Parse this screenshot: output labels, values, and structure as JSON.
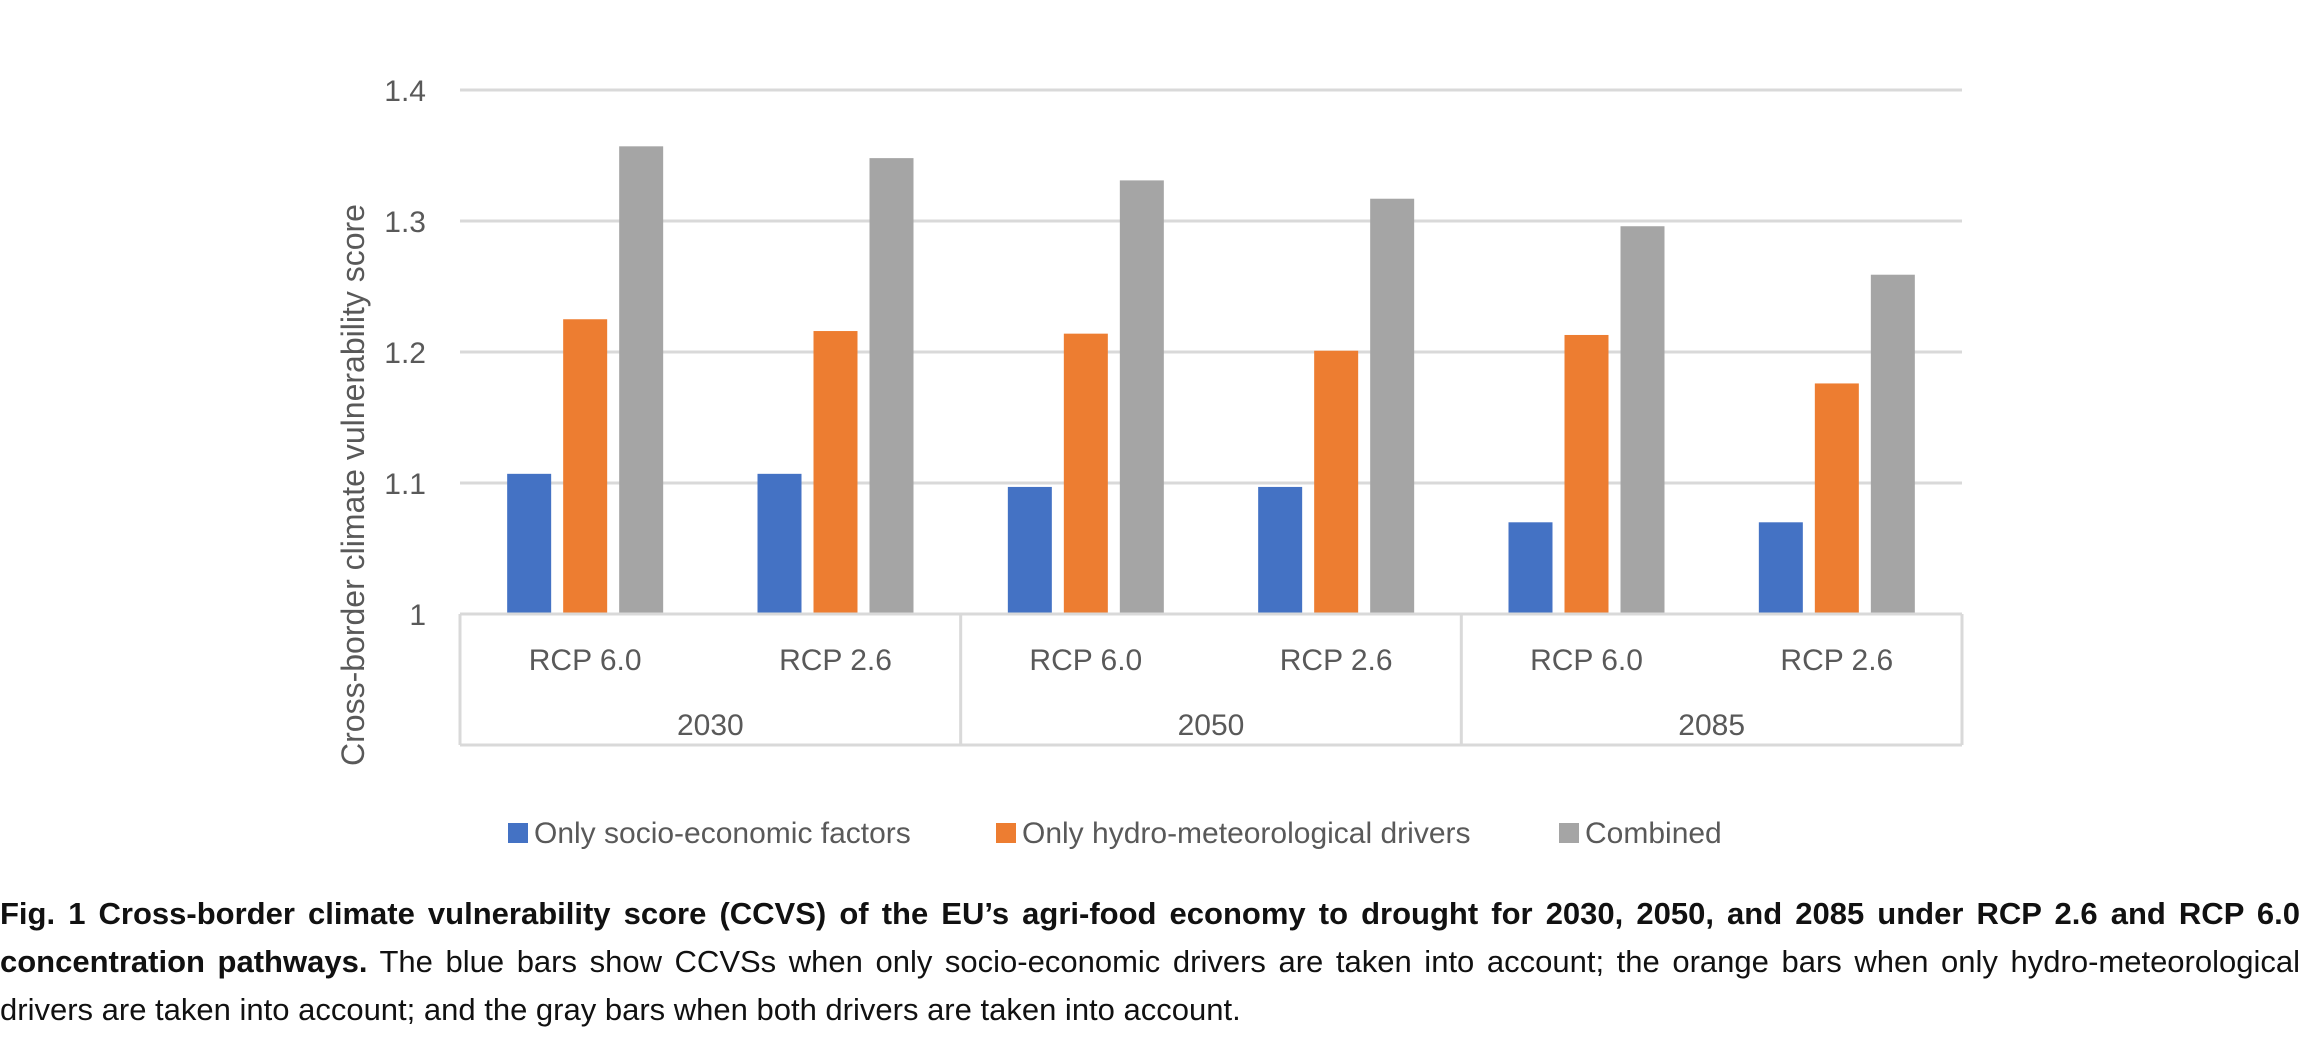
{
  "chart_data": {
    "type": "bar",
    "ylabel": "Cross-border climate vulnerability score",
    "xlabel": "",
    "ylim": [
      1,
      1.4
    ],
    "yticks": [
      "1",
      "1.1",
      "1.2",
      "1.3",
      "1.4"
    ],
    "grid": true,
    "legend_position": "bottom",
    "categories": [
      "RCP 6.0",
      "RCP 2.6",
      "RCP 6.0",
      "RCP 2.6",
      "RCP 6.0",
      "RCP 2.6"
    ],
    "groups": [
      {
        "label": "2030",
        "categories": [
          "RCP 6.0",
          "RCP 2.6"
        ]
      },
      {
        "label": "2050",
        "categories": [
          "RCP 6.0",
          "RCP 2.6"
        ]
      },
      {
        "label": "2085",
        "categories": [
          "RCP 6.0",
          "RCP 2.6"
        ]
      }
    ],
    "series": [
      {
        "name": "Only socio-economic factors",
        "color": "#4472C4",
        "values": [
          1.107,
          1.107,
          1.097,
          1.097,
          1.07,
          1.07
        ]
      },
      {
        "name": "Only hydro-meteorological drivers",
        "color": "#ED7D31",
        "values": [
          1.225,
          1.216,
          1.214,
          1.201,
          1.213,
          1.176
        ]
      },
      {
        "name": "Combined",
        "color": "#A5A5A5",
        "values": [
          1.357,
          1.348,
          1.331,
          1.317,
          1.296,
          1.259
        ]
      }
    ]
  },
  "caption": {
    "bold": "Fig. 1 Cross-border climate vulnerability score (CCVS) of the EU’s agri-food economy to drought for 2030, 2050, and 2085 under RCP 2.6 and RCP 6.0 concentration pathways.",
    "text": " The blue bars show CCVSs when only socio-economic drivers are taken into account; the orange bars when only hydro-meteorological drivers are taken into account; and the gray bars when both drivers are taken into account."
  }
}
